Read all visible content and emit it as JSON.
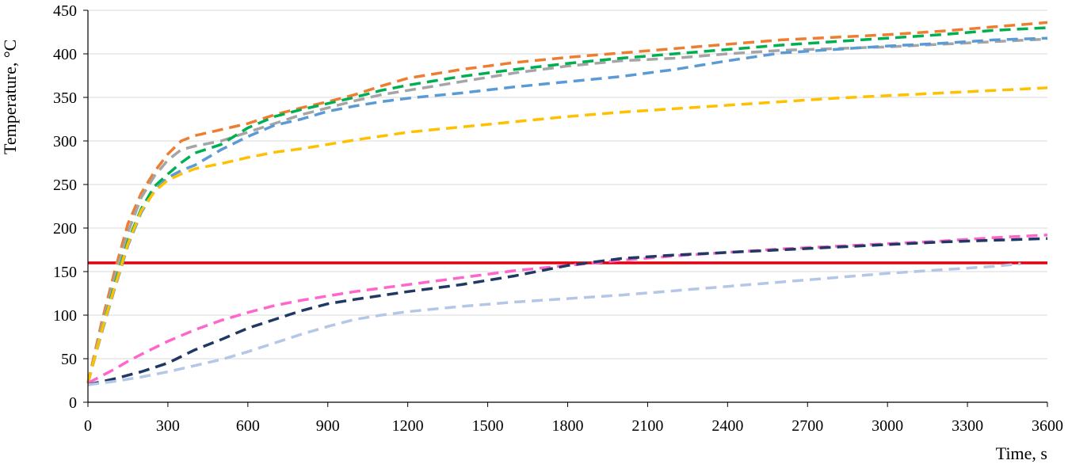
{
  "chart_data": {
    "type": "line",
    "title": "",
    "xlabel": "Time, s",
    "ylabel": "Temperature, °C",
    "xlim": [
      0,
      3600
    ],
    "ylim": [
      0,
      450
    ],
    "xticks": [
      0,
      300,
      600,
      900,
      1200,
      1500,
      1800,
      2100,
      2400,
      2700,
      3000,
      3300,
      3600
    ],
    "yticks": [
      0,
      50,
      100,
      150,
      200,
      250,
      300,
      350,
      400,
      450
    ],
    "grid": "horizontal",
    "legend": "none",
    "reference_line": {
      "y": 160,
      "color": "#e3000f"
    },
    "series": [
      {
        "color": "#ed7d31",
        "dash": true,
        "x": [
          0,
          50,
          100,
          150,
          200,
          250,
          300,
          350,
          400,
          500,
          600,
          700,
          800,
          900,
          1000,
          1100,
          1200,
          1400,
          1600,
          1800,
          2000,
          2200,
          2400,
          2600,
          2800,
          3000,
          3200,
          3400,
          3600
        ],
        "y": [
          22,
          90,
          150,
          205,
          240,
          265,
          285,
          300,
          306,
          313,
          320,
          330,
          338,
          345,
          353,
          363,
          372,
          382,
          390,
          396,
          401,
          406,
          411,
          416,
          419,
          422,
          426,
          431,
          436
        ]
      },
      {
        "color": "#a5a5a5",
        "dash": true,
        "x": [
          0,
          50,
          100,
          150,
          200,
          250,
          300,
          350,
          400,
          500,
          600,
          700,
          800,
          900,
          1000,
          1100,
          1200,
          1400,
          1600,
          1800,
          2000,
          2200,
          2400,
          2600,
          2800,
          3000,
          3200,
          3400,
          3600
        ],
        "y": [
          22,
          85,
          143,
          195,
          235,
          260,
          278,
          290,
          294,
          300,
          310,
          320,
          330,
          338,
          346,
          353,
          358,
          368,
          378,
          386,
          392,
          395,
          400,
          404,
          406,
          408,
          411,
          414,
          417
        ]
      },
      {
        "color": "#00b050",
        "dash": true,
        "x": [
          0,
          50,
          100,
          150,
          200,
          250,
          300,
          350,
          400,
          500,
          600,
          700,
          800,
          900,
          1000,
          1100,
          1200,
          1400,
          1600,
          1800,
          2000,
          2200,
          2400,
          2600,
          2800,
          3000,
          3200,
          3400,
          3600
        ],
        "y": [
          22,
          80,
          135,
          185,
          222,
          248,
          262,
          275,
          286,
          296,
          315,
          328,
          336,
          343,
          350,
          358,
          364,
          374,
          382,
          389,
          395,
          400,
          405,
          410,
          414,
          418,
          422,
          427,
          430
        ]
      },
      {
        "color": "#5b9bd5",
        "dash": true,
        "x": [
          0,
          50,
          100,
          150,
          200,
          250,
          300,
          350,
          400,
          500,
          600,
          700,
          800,
          900,
          1000,
          1100,
          1200,
          1400,
          1600,
          1800,
          2000,
          2200,
          2400,
          2600,
          2800,
          3000,
          3200,
          3400,
          3600
        ],
        "y": [
          22,
          78,
          130,
          180,
          218,
          243,
          258,
          266,
          272,
          290,
          305,
          318,
          325,
          334,
          340,
          345,
          349,
          355,
          362,
          368,
          374,
          382,
          392,
          401,
          405,
          409,
          412,
          416,
          418
        ]
      },
      {
        "color": "#ffc000",
        "dash": true,
        "x": [
          0,
          50,
          100,
          150,
          200,
          250,
          300,
          350,
          400,
          500,
          600,
          700,
          800,
          900,
          1000,
          1200,
          1400,
          1600,
          1800,
          2000,
          2200,
          2400,
          2600,
          2800,
          3000,
          3200,
          3400,
          3600
        ],
        "y": [
          22,
          80,
          132,
          182,
          220,
          242,
          255,
          262,
          268,
          274,
          281,
          287,
          291,
          296,
          301,
          310,
          316,
          322,
          328,
          333,
          337,
          341,
          345,
          349,
          352,
          355,
          358,
          361
        ]
      },
      {
        "color": "#ff66cc",
        "dash": true,
        "x": [
          0,
          50,
          100,
          150,
          200,
          300,
          400,
          500,
          600,
          700,
          800,
          900,
          1000,
          1100,
          1200,
          1400,
          1600,
          1800,
          2000,
          2200,
          2400,
          2600,
          2800,
          3000,
          3200,
          3400,
          3600
        ],
        "y": [
          22,
          30,
          38,
          47,
          55,
          70,
          83,
          94,
          103,
          111,
          117,
          122,
          127,
          131,
          135,
          143,
          151,
          157,
          163,
          168,
          172,
          176,
          179,
          182,
          185,
          189,
          192
        ]
      },
      {
        "color": "#203864",
        "dash": true,
        "x": [
          0,
          100,
          200,
          300,
          400,
          500,
          600,
          700,
          800,
          900,
          1000,
          1200,
          1400,
          1600,
          1800,
          2000,
          2200,
          2400,
          2600,
          2800,
          3000,
          3200,
          3400,
          3600
        ],
        "y": [
          20,
          27,
          35,
          45,
          60,
          72,
          85,
          95,
          105,
          113,
          118,
          127,
          135,
          145,
          157,
          165,
          169,
          172,
          175,
          178,
          181,
          184,
          186,
          188
        ]
      },
      {
        "color": "#b4c7e7",
        "dash": true,
        "x": [
          0,
          100,
          200,
          300,
          400,
          500,
          600,
          700,
          800,
          900,
          1000,
          1100,
          1200,
          1400,
          1600,
          1800,
          2000,
          2200,
          2400,
          2600,
          2800,
          3000,
          3200,
          3400,
          3500
        ],
        "y": [
          20,
          24,
          29,
          35,
          42,
          49,
          58,
          68,
          78,
          87,
          95,
          100,
          104,
          110,
          115,
          119,
          123,
          128,
          133,
          138,
          143,
          148,
          152,
          156,
          159
        ]
      }
    ]
  }
}
